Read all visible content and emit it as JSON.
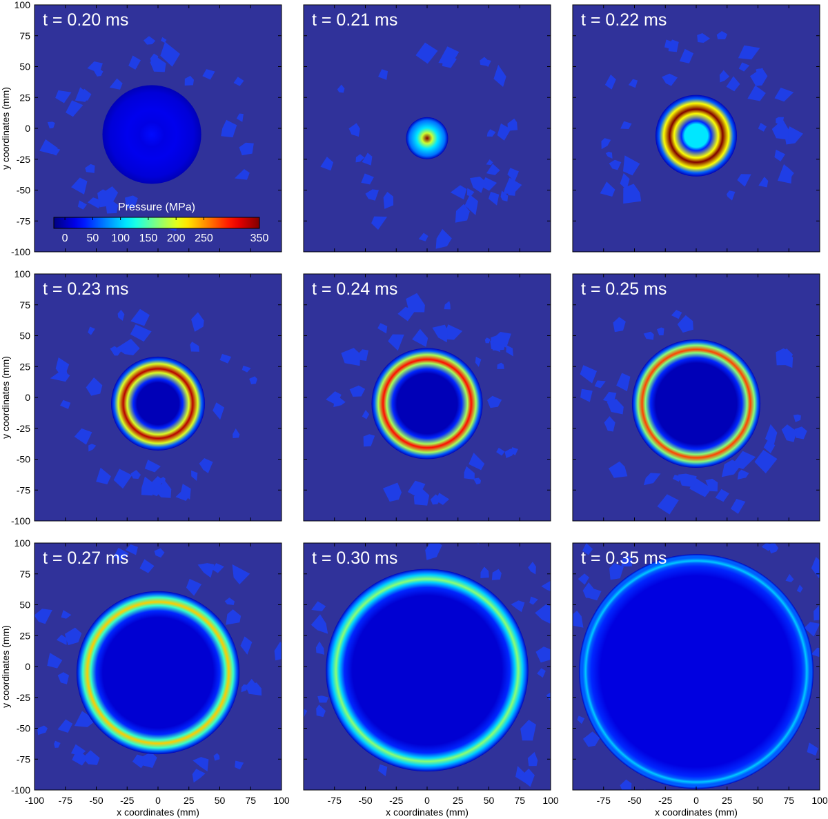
{
  "chart_data": {
    "type": "heatmap",
    "layout": "3x3 small multiples",
    "xlabel": "x coordinates (mm)",
    "ylabel": "y coordinates (mm)",
    "xlim": [
      -100,
      100
    ],
    "ylim": [
      -100,
      100
    ],
    "xticks": [
      -100,
      -75,
      -50,
      -25,
      0,
      25,
      50,
      75,
      100
    ],
    "yticks": [
      100,
      75,
      50,
      25,
      0,
      -25,
      -50,
      -75,
      -100
    ],
    "colorbar": {
      "title": "Pressure (MPa)",
      "ticks": [
        "0",
        "50",
        "100",
        "150",
        "200",
        "250",
        "350"
      ],
      "range": [
        -20,
        350
      ],
      "colormap": "jet"
    },
    "background_color": "#30329a",
    "panels": [
      {
        "label": "t = 0.20 ms",
        "cx": -5,
        "cy": -5,
        "outer_r": 40,
        "inner_r": 0,
        "peak_mpa": 30,
        "inner_mpa": 20,
        "blob": true
      },
      {
        "label": "t = 0.21 ms",
        "cx": 0,
        "cy": -8,
        "outer_r": 17,
        "inner_r": 0,
        "peak_mpa": 350,
        "inner_mpa": 110,
        "blob": true
      },
      {
        "label": "t = 0.22 ms",
        "cx": 0,
        "cy": -6,
        "outer_r": 33,
        "inner_r": 12,
        "peak_mpa": 350,
        "inner_mpa": 110,
        "blob": false
      },
      {
        "label": "t = 0.23 ms",
        "cx": 0,
        "cy": -5,
        "outer_r": 38,
        "inner_r": 20,
        "peak_mpa": 330,
        "inner_mpa": 0,
        "blob": false
      },
      {
        "label": "t = 0.24 ms",
        "cx": 0,
        "cy": -5,
        "outer_r": 45,
        "inner_r": 28,
        "peak_mpa": 300,
        "inner_mpa": 0,
        "blob": false
      },
      {
        "label": "t = 0.25 ms",
        "cx": 0,
        "cy": -5,
        "outer_r": 52,
        "inner_r": 37,
        "peak_mpa": 280,
        "inner_mpa": 0,
        "blob": false
      },
      {
        "label": "t = 0.27 ms",
        "cx": 0,
        "cy": -5,
        "outer_r": 66,
        "inner_r": 50,
        "peak_mpa": 230,
        "inner_mpa": 10,
        "blob": false
      },
      {
        "label": "t = 0.30 ms",
        "cx": 0,
        "cy": -3,
        "outer_r": 82,
        "inner_r": 67,
        "peak_mpa": 170,
        "inner_mpa": 10,
        "blob": false
      },
      {
        "label": "t = 0.35 ms",
        "cx": 0,
        "cy": -4,
        "outer_r": 95,
        "inner_r": 85,
        "peak_mpa": 100,
        "inner_mpa": 15,
        "blob": false
      }
    ]
  }
}
